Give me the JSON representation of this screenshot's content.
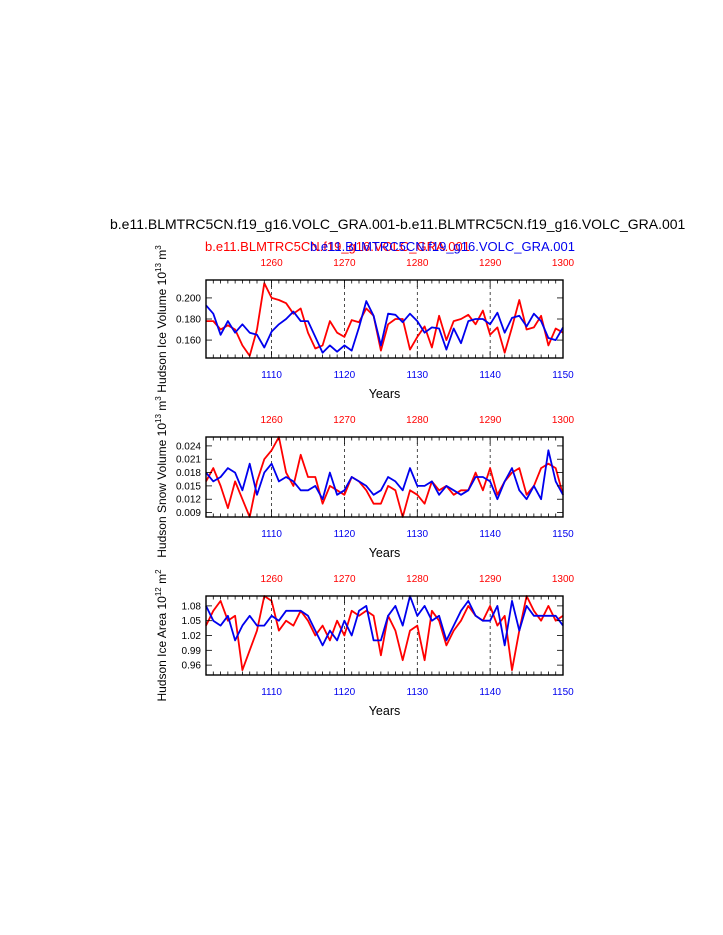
{
  "title": "b.e11.BLMTRC5CN.f19_g16.VOLC_GRA.001-b.e11.BLMTRC5CN.f19_g16.VOLC_GRA.001",
  "subtitle_red": "b.e11.BLMTRC5CN.f19_g16.VOLC_GRA.001",
  "subtitle_blue": "b.e11.BLMTRC5CN.f19_g16.VOLC_GRA.001",
  "colors": {
    "red_series": "#ff0000",
    "blue_series": "#0000ee"
  },
  "chart_data": [
    {
      "type": "line",
      "name": "ice-volume",
      "ylabel": "Hudson Ice Volume 10^13 m^3",
      "xlabel": "Years",
      "ylim": [
        0.143,
        0.217
      ],
      "yticks": [
        "0.160",
        "0.180",
        "0.200"
      ],
      "x_bottom": {
        "range": [
          1101,
          1150
        ],
        "ticks": [
          "1110",
          "1120",
          "1130",
          "1140",
          "1150"
        ]
      },
      "x_top": {
        "range": [
          1251,
          1300
        ],
        "ticks": [
          "1260",
          "1270",
          "1280",
          "1290",
          "1300"
        ]
      },
      "series": [
        {
          "color": "red",
          "values": [
            0.178,
            0.178,
            0.17,
            0.174,
            0.17,
            0.155,
            0.145,
            0.17,
            0.214,
            0.2,
            0.198,
            0.195,
            0.185,
            0.19,
            0.167,
            0.152,
            0.155,
            0.178,
            0.167,
            0.163,
            0.179,
            0.177,
            0.19,
            0.183,
            0.15,
            0.175,
            0.18,
            0.18,
            0.151,
            0.163,
            0.173,
            0.153,
            0.183,
            0.16,
            0.178,
            0.18,
            0.184,
            0.175,
            0.188,
            0.165,
            0.172,
            0.148,
            0.172,
            0.198,
            0.17,
            0.172,
            0.183,
            0.155,
            0.171,
            0.167
          ]
        },
        {
          "color": "blue",
          "values": [
            0.193,
            0.185,
            0.165,
            0.178,
            0.167,
            0.175,
            0.167,
            0.165,
            0.153,
            0.168,
            0.175,
            0.18,
            0.187,
            0.178,
            0.178,
            0.163,
            0.148,
            0.155,
            0.149,
            0.155,
            0.15,
            0.172,
            0.197,
            0.183,
            0.155,
            0.185,
            0.184,
            0.177,
            0.185,
            0.178,
            0.167,
            0.172,
            0.171,
            0.151,
            0.171,
            0.157,
            0.178,
            0.18,
            0.18,
            0.175,
            0.186,
            0.167,
            0.181,
            0.183,
            0.173,
            0.185,
            0.178,
            0.162,
            0.16,
            0.172
          ]
        }
      ]
    },
    {
      "type": "line",
      "name": "snow-volume",
      "ylabel": "Hudson Snow Volume 10^13 m^3",
      "xlabel": "Years",
      "ylim": [
        0.008,
        0.026
      ],
      "yticks": [
        "0.009",
        "0.012",
        "0.015",
        "0.018",
        "0.021",
        "0.024"
      ],
      "x_bottom": {
        "range": [
          1101,
          1150
        ],
        "ticks": [
          "1110",
          "1120",
          "1130",
          "1140",
          "1150"
        ]
      },
      "x_top": {
        "range": [
          1251,
          1300
        ],
        "ticks": [
          "1260",
          "1270",
          "1280",
          "1290",
          "1300"
        ]
      },
      "series": [
        {
          "color": "red",
          "values": [
            0.016,
            0.019,
            0.015,
            0.01,
            0.016,
            0.012,
            0.008,
            0.016,
            0.021,
            0.023,
            0.026,
            0.018,
            0.015,
            0.022,
            0.017,
            0.017,
            0.011,
            0.015,
            0.014,
            0.013,
            0.017,
            0.016,
            0.014,
            0.011,
            0.011,
            0.015,
            0.014,
            0.008,
            0.014,
            0.013,
            0.011,
            0.016,
            0.014,
            0.015,
            0.013,
            0.014,
            0.014,
            0.018,
            0.014,
            0.019,
            0.013,
            0.016,
            0.018,
            0.019,
            0.013,
            0.015,
            0.019,
            0.02,
            0.019,
            0.013
          ]
        },
        {
          "color": "blue",
          "values": [
            0.018,
            0.016,
            0.017,
            0.019,
            0.018,
            0.014,
            0.02,
            0.013,
            0.018,
            0.02,
            0.016,
            0.017,
            0.016,
            0.014,
            0.014,
            0.015,
            0.012,
            0.018,
            0.013,
            0.014,
            0.017,
            0.016,
            0.015,
            0.013,
            0.014,
            0.017,
            0.016,
            0.014,
            0.019,
            0.015,
            0.015,
            0.016,
            0.013,
            0.015,
            0.014,
            0.013,
            0.014,
            0.017,
            0.017,
            0.016,
            0.012,
            0.016,
            0.019,
            0.014,
            0.012,
            0.015,
            0.012,
            0.023,
            0.016,
            0.013
          ]
        }
      ]
    },
    {
      "type": "line",
      "name": "ice-area",
      "ylabel": "Hudson Ice Area 10^12 m^2",
      "xlabel": "Years",
      "ylim": [
        0.94,
        1.1
      ],
      "yticks": [
        "0.96",
        "0.99",
        "1.02",
        "1.05",
        "1.08"
      ],
      "x_bottom": {
        "range": [
          1101,
          1150
        ],
        "ticks": [
          "1110",
          "1120",
          "1130",
          "1140",
          "1150"
        ]
      },
      "x_top": {
        "range": [
          1251,
          1300
        ],
        "ticks": [
          "1260",
          "1270",
          "1280",
          "1290",
          "1300"
        ]
      },
      "series": [
        {
          "color": "red",
          "values": [
            1.04,
            1.07,
            1.09,
            1.05,
            1.06,
            0.95,
            0.99,
            1.03,
            1.1,
            1.09,
            1.03,
            1.05,
            1.04,
            1.07,
            1.05,
            1.02,
            1.04,
            1.01,
            1.05,
            1.02,
            1.07,
            1.06,
            1.07,
            1.06,
            0.98,
            1.06,
            1.03,
            0.97,
            1.03,
            1.04,
            0.97,
            1.07,
            1.05,
            1.0,
            1.03,
            1.05,
            1.08,
            1.06,
            1.05,
            1.08,
            1.04,
            1.06,
            0.95,
            1.03,
            1.1,
            1.07,
            1.05,
            1.08,
            1.05,
            1.06
          ]
        },
        {
          "color": "blue",
          "values": [
            1.08,
            1.05,
            1.04,
            1.06,
            1.01,
            1.04,
            1.06,
            1.04,
            1.04,
            1.06,
            1.05,
            1.07,
            1.07,
            1.07,
            1.06,
            1.03,
            1.0,
            1.03,
            1.01,
            1.05,
            1.02,
            1.07,
            1.08,
            1.01,
            1.01,
            1.06,
            1.08,
            1.04,
            1.1,
            1.06,
            1.08,
            1.05,
            1.06,
            1.01,
            1.04,
            1.07,
            1.09,
            1.06,
            1.05,
            1.05,
            1.08,
            1.0,
            1.09,
            1.03,
            1.08,
            1.06,
            1.06,
            1.06,
            1.06,
            1.04
          ]
        }
      ]
    }
  ]
}
